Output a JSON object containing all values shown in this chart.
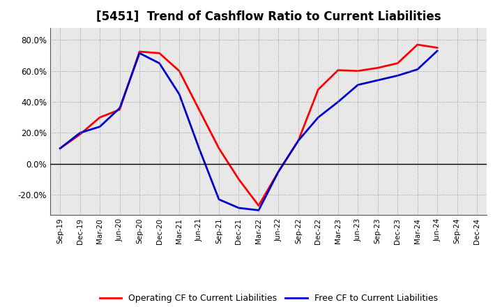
{
  "title": "[5451]  Trend of Cashflow Ratio to Current Liabilities",
  "x_labels": [
    "Sep-19",
    "Dec-19",
    "Mar-20",
    "Jun-20",
    "Sep-20",
    "Dec-20",
    "Mar-21",
    "Jun-21",
    "Sep-21",
    "Dec-21",
    "Mar-22",
    "Jun-22",
    "Sep-22",
    "Dec-22",
    "Mar-23",
    "Jun-23",
    "Sep-23",
    "Dec-23",
    "Mar-24",
    "Jun-24",
    "Sep-24",
    "Dec-24"
  ],
  "operating_cf": [
    10.0,
    19.0,
    30.0,
    35.0,
    72.5,
    71.5,
    60.0,
    35.0,
    10.0,
    -10.0,
    -27.0,
    -5.0,
    15.0,
    48.0,
    60.5,
    60.0,
    62.0,
    65.0,
    77.0,
    75.0,
    null,
    null
  ],
  "free_cf": [
    10.0,
    20.0,
    24.0,
    36.0,
    71.5,
    65.0,
    45.0,
    10.0,
    -23.0,
    -28.5,
    -30.0,
    -5.0,
    15.0,
    30.0,
    40.0,
    51.0,
    54.0,
    57.0,
    61.0,
    73.0,
    null,
    null
  ],
  "operating_color": "#ff0000",
  "free_color": "#0000cc",
  "ylim": [
    -33,
    88
  ],
  "yticks": [
    -20.0,
    0.0,
    20.0,
    40.0,
    60.0,
    80.0
  ],
  "background_color": "#ffffff",
  "plot_bg_color": "#e8e8e8",
  "grid_color": "#888888",
  "legend_op": "Operating CF to Current Liabilities",
  "legend_free": "Free CF to Current Liabilities",
  "line_width": 2.0,
  "title_fontsize": 12
}
